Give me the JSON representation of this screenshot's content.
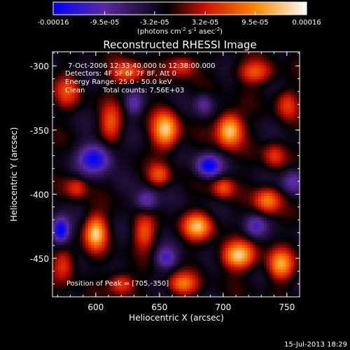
{
  "chart_data": {
    "type": "heatmap",
    "title": "Reconstructed RHESSI Image",
    "xlabel": "Heliocentric X (arcsec)",
    "ylabel": "Heliocentric Y (arcsec)",
    "xlim": [
      566,
      760
    ],
    "ylim": [
      -480,
      -289
    ],
    "xticks": [
      600,
      650,
      700,
      750
    ],
    "yticks": [
      -300,
      -350,
      -400,
      -450
    ],
    "colorbar": {
      "range": [
        -0.00016,
        0.00016
      ],
      "tick_values": [
        -0.00016,
        -9.5e-05,
        -3.2e-05,
        3.2e-05,
        9.5e-05,
        0.00016
      ],
      "tick_labels": [
        "-0.00016",
        "-9.5e-05",
        "-3.2e-05",
        "3.2e-05",
        "9.5e-05",
        "0.00016"
      ],
      "label_main": "(photons cm",
      "label_exp1": "-2",
      "label_mid": " s",
      "label_exp2": "-1",
      "label_end": " asec",
      "label_exp3": "-2",
      "label_close": ")",
      "colormap_stops": [
        "#0000ff",
        "#5a2aa0",
        "#000000",
        "#d01000",
        "#ff8800",
        "#ffffff"
      ]
    },
    "annotations": {
      "time_range": "7-Oct-2006 12:33:40.000 to 12:38:00.000",
      "detectors": "Detectors: 4F 5F 6F 7F 8F, Att 0",
      "energy": "Energy Range: 25.0 - 50.0 keV",
      "method": "Clean",
      "total_counts": "Total counts: 7.56E+03",
      "peak": "Position of Peak = [705,-350]"
    },
    "peak_position": [
      705,
      -350
    ],
    "sources": [
      {
        "x": 705,
        "y": -350,
        "amp": 1.0,
        "sx": 7,
        "sy": 9
      },
      {
        "x": 655,
        "y": -350,
        "amp": 0.95,
        "sx": 7,
        "sy": 10
      },
      {
        "x": 612,
        "y": -345,
        "amp": 0.55,
        "sx": 6,
        "sy": 10
      },
      {
        "x": 578,
        "y": -320,
        "amp": 0.45,
        "sx": 7,
        "sy": 9
      },
      {
        "x": 625,
        "y": -305,
        "amp": 0.6,
        "sx": 9,
        "sy": 6
      },
      {
        "x": 668,
        "y": -300,
        "amp": 0.5,
        "sx": 8,
        "sy": 6
      },
      {
        "x": 725,
        "y": -305,
        "amp": 0.55,
        "sx": 10,
        "sy": 6
      },
      {
        "x": 750,
        "y": -330,
        "amp": 0.45,
        "sx": 6,
        "sy": 8
      },
      {
        "x": 600,
        "y": -430,
        "amp": 0.95,
        "sx": 6,
        "sy": 9
      },
      {
        "x": 638,
        "y": -430,
        "amp": 0.55,
        "sx": 6,
        "sy": 9
      },
      {
        "x": 680,
        "y": -425,
        "amp": 0.85,
        "sx": 8,
        "sy": 7
      },
      {
        "x": 712,
        "y": -448,
        "amp": 0.95,
        "sx": 9,
        "sy": 7
      },
      {
        "x": 745,
        "y": -455,
        "amp": 0.8,
        "sx": 7,
        "sy": 8
      },
      {
        "x": 735,
        "y": -405,
        "amp": 0.7,
        "sx": 7,
        "sy": 7
      },
      {
        "x": 700,
        "y": -395,
        "amp": 0.55,
        "sx": 6,
        "sy": 6
      },
      {
        "x": 650,
        "y": -385,
        "amp": 0.5,
        "sx": 6,
        "sy": 6
      },
      {
        "x": 585,
        "y": -395,
        "amp": 0.45,
        "sx": 6,
        "sy": 6
      },
      {
        "x": 575,
        "y": -455,
        "amp": 0.5,
        "sx": 6,
        "sy": 9
      },
      {
        "x": 620,
        "y": -470,
        "amp": 0.55,
        "sx": 7,
        "sy": 6
      },
      {
        "x": 668,
        "y": -470,
        "amp": 0.65,
        "sx": 8,
        "sy": 6
      },
      {
        "x": 740,
        "y": -370,
        "amp": 0.45,
        "sx": 6,
        "sy": 7
      },
      {
        "x": 600,
        "y": -372,
        "amp": -0.85,
        "sx": 9,
        "sy": 8
      },
      {
        "x": 688,
        "y": -378,
        "amp": -0.85,
        "sx": 7,
        "sy": 6
      },
      {
        "x": 572,
        "y": -428,
        "amp": -1.0,
        "sx": 5,
        "sy": 7
      },
      {
        "x": 640,
        "y": -405,
        "amp": -0.55,
        "sx": 6,
        "sy": 6
      },
      {
        "x": 725,
        "y": -425,
        "amp": -0.5,
        "sx": 6,
        "sy": 6
      },
      {
        "x": 655,
        "y": -450,
        "amp": -0.55,
        "sx": 6,
        "sy": 6
      },
      {
        "x": 755,
        "y": -390,
        "amp": -0.5,
        "sx": 6,
        "sy": 7
      },
      {
        "x": 630,
        "y": -330,
        "amp": -0.45,
        "sx": 5,
        "sy": 6
      },
      {
        "x": 685,
        "y": -330,
        "amp": -0.45,
        "sx": 5,
        "sy": 6
      }
    ]
  },
  "footer": {
    "timestamp": "15-Jul-2013 18:29"
  }
}
